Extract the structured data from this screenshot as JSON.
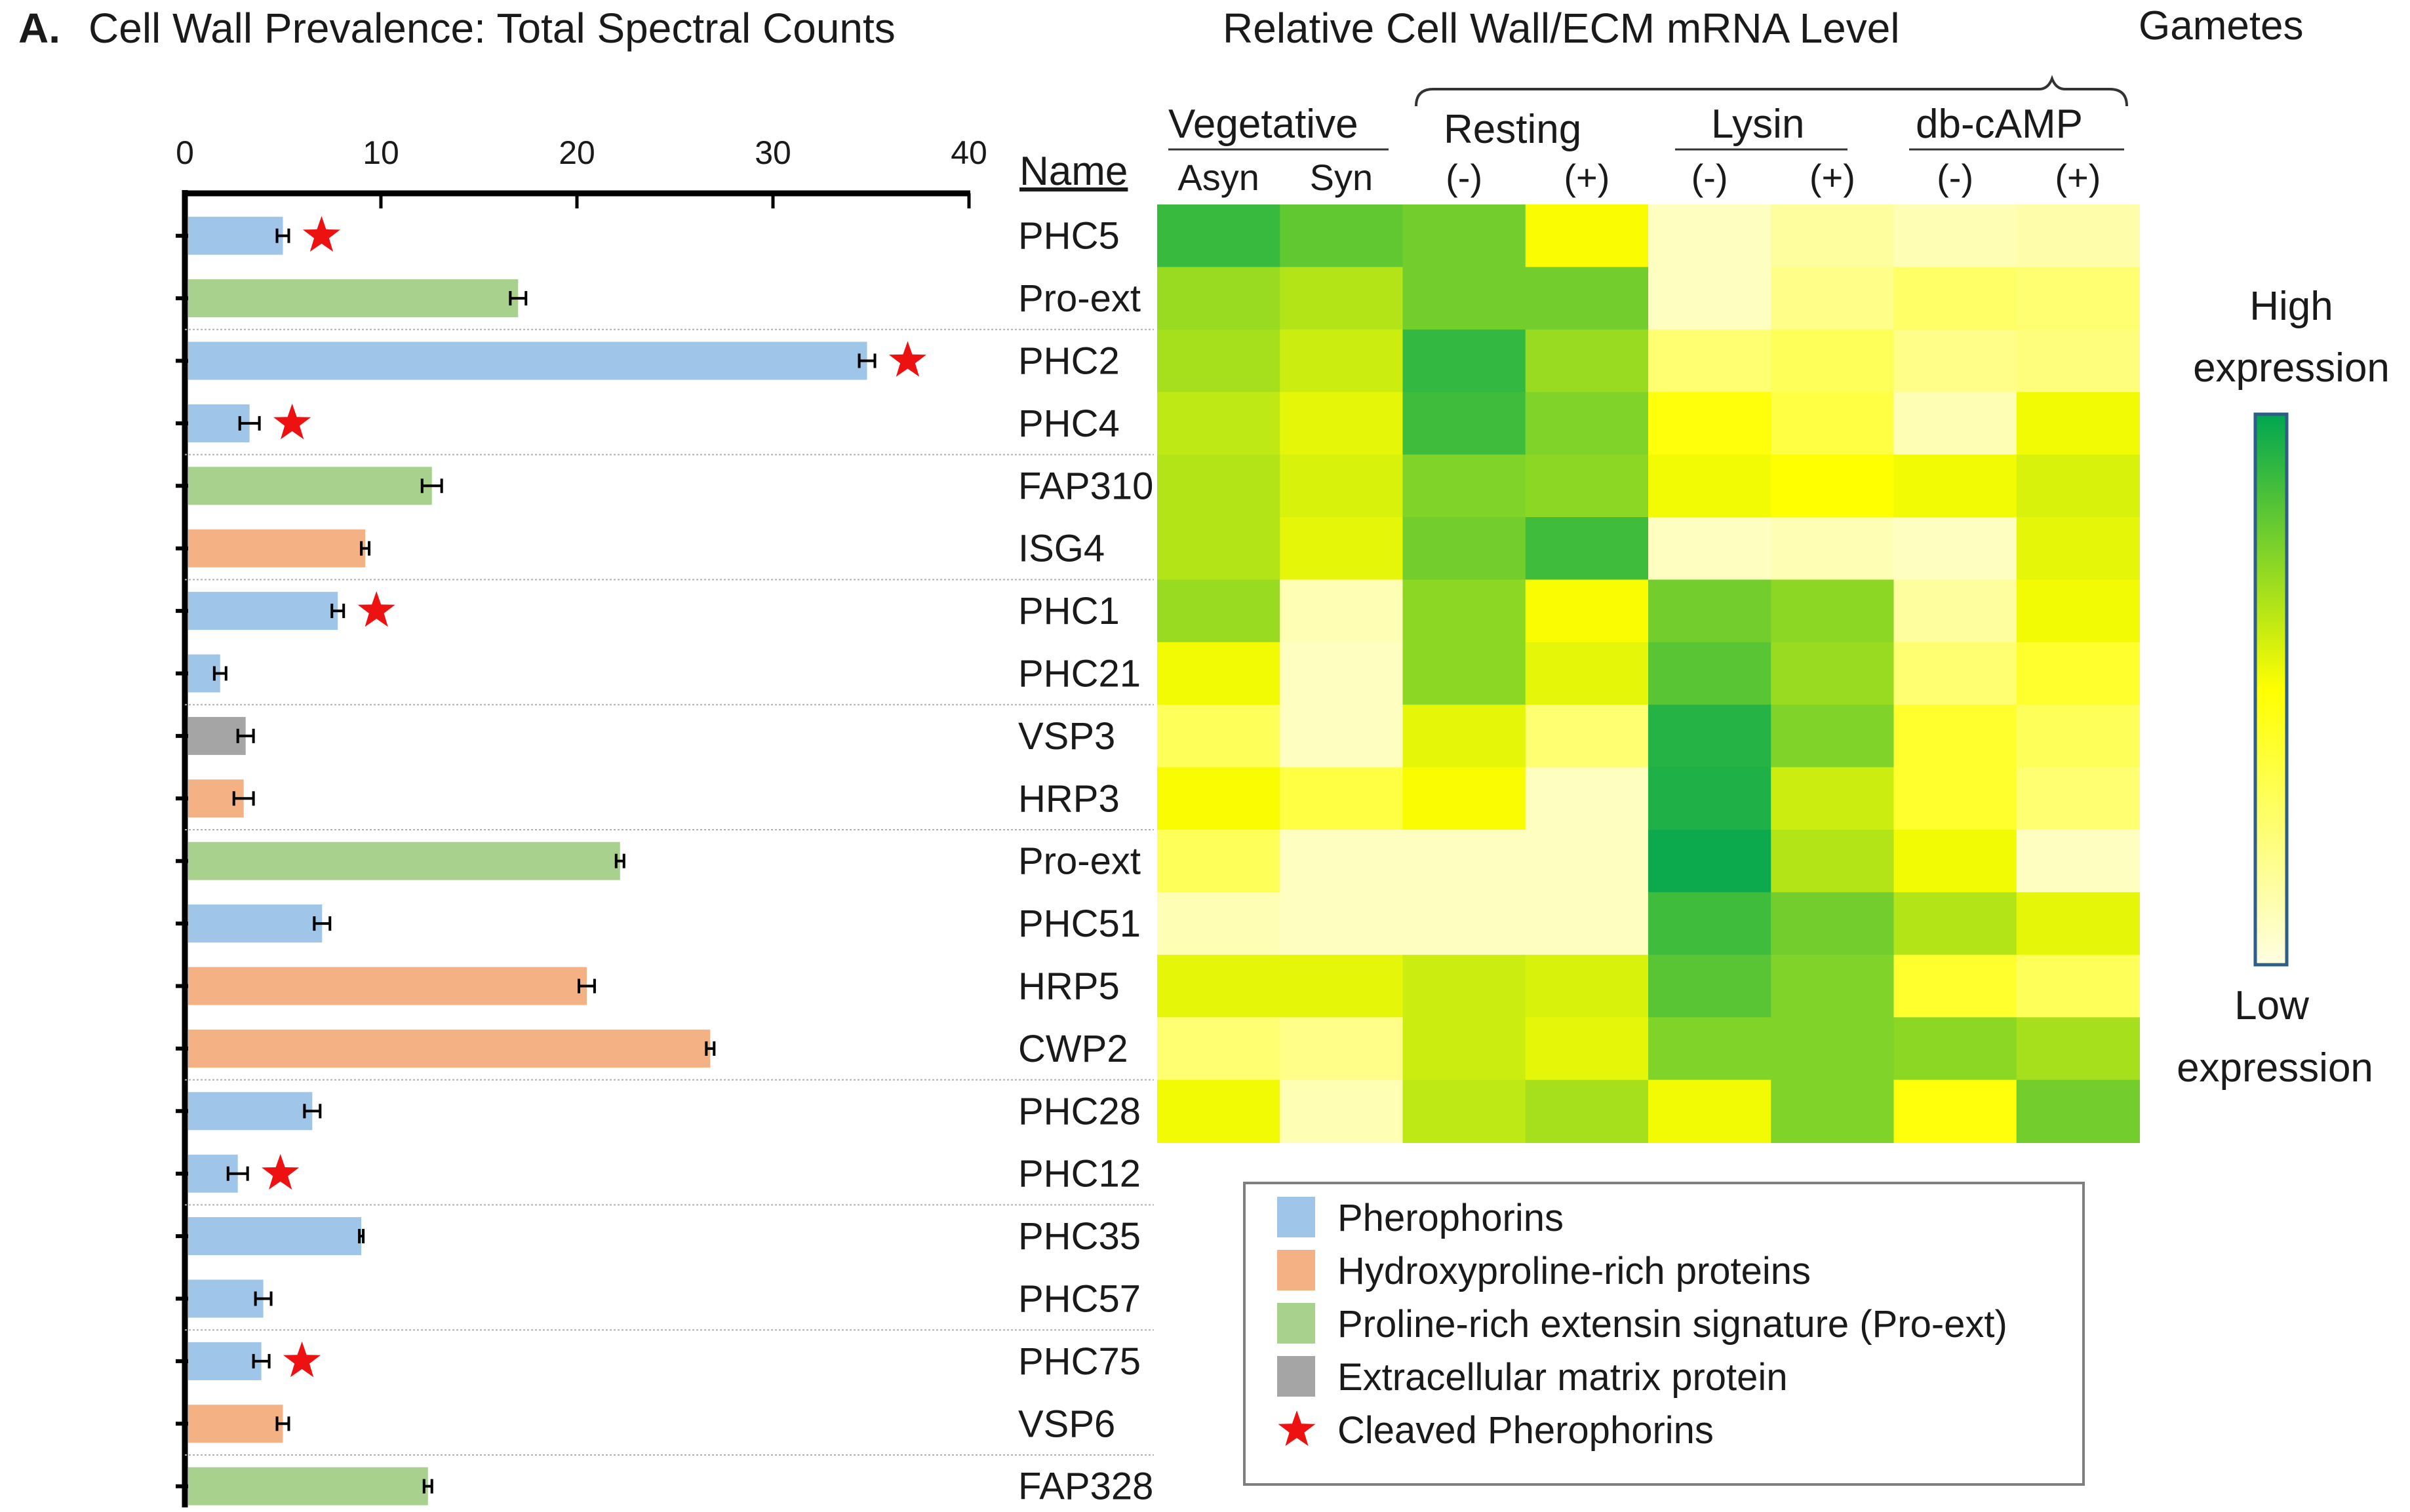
{
  "panel_letter": "A.",
  "bar_title": "Cell Wall Prevalence: Total Spectral Counts",
  "heat_title": "Relative Cell Wall/ECM mRNA Level",
  "name_header": "Name",
  "colors": {
    "Pherophorins": "#9fc5e8",
    "Hydroxyproline-rich proteins": "#f4b183",
    "Proline-rich extensin signature (Pro-ext)": "#a9d18e",
    "Extracellular matrix protein": "#a5a5a5",
    "star": "#ee1111",
    "heat_low": "#fefee2",
    "heat_mid": "#ffff00",
    "heat_high": "#00a651"
  },
  "group_headers": {
    "gametes": "Gametes",
    "vegetative": "Vegetative",
    "resting": "Resting",
    "lysin": "Lysin",
    "dbcamp": "db-cAMP"
  },
  "column_labels": [
    "Asyn",
    "Syn",
    "(-)",
    "(+)",
    "(-)",
    "(+)",
    "(-)",
    "(+)"
  ],
  "colorbar": {
    "high_line1": "High",
    "high_line2": "expression",
    "low_line1": "Low",
    "low_line2": "expression"
  },
  "legend": [
    {
      "label": "Pherophorins",
      "kind": "swatch",
      "key": "Pherophorins"
    },
    {
      "label": "Hydroxyproline-rich proteins",
      "kind": "swatch",
      "key": "Hydroxyproline-rich proteins"
    },
    {
      "label": "Proline-rich extensin signature (Pro-ext)",
      "kind": "swatch",
      "key": "Proline-rich extensin signature (Pro-ext)"
    },
    {
      "label": "Extracellular matrix protein",
      "kind": "swatch",
      "key": "Extracellular matrix protein"
    },
    {
      "label": "Cleaved Pherophorins",
      "kind": "star",
      "key": "star"
    }
  ],
  "chart_data": [
    {
      "type": "bar",
      "orientation": "horizontal",
      "title": "Cell Wall Prevalence: Total Spectral Counts",
      "xlim": [
        0,
        40
      ],
      "xticks": [
        0,
        10,
        20,
        30,
        40
      ],
      "categories": [
        "PHC5",
        "Pro-ext",
        "PHC2",
        "PHC4",
        "FAP310",
        "ISG4",
        "PHC1",
        "PHC21",
        "VSP3",
        "HRP3",
        "Pro-ext",
        "PHC51",
        "HRP5",
        "CWP2",
        "PHC28",
        "PHC12",
        "PHC35",
        "PHC57",
        "PHC75",
        "VSP6",
        "FAP328"
      ],
      "values": [
        5,
        17,
        34.8,
        3.3,
        12.6,
        9.2,
        7.8,
        1.8,
        3.1,
        3.0,
        22.2,
        7.0,
        20.5,
        26.8,
        6.5,
        2.7,
        9.0,
        4.0,
        3.9,
        5.0,
        12.4
      ],
      "errors": [
        0.3,
        0.4,
        0.4,
        0.5,
        0.5,
        0.2,
        0.3,
        0.3,
        0.4,
        0.5,
        0.2,
        0.4,
        0.4,
        0.2,
        0.4,
        0.5,
        0.1,
        0.4,
        0.4,
        0.3,
        0.2
      ],
      "classes": [
        "Pherophorins",
        "Proline-rich extensin signature (Pro-ext)",
        "Pherophorins",
        "Pherophorins",
        "Proline-rich extensin signature (Pro-ext)",
        "Hydroxyproline-rich proteins",
        "Pherophorins",
        "Pherophorins",
        "Extracellular matrix protein",
        "Hydroxyproline-rich proteins",
        "Proline-rich extensin signature (Pro-ext)",
        "Pherophorins",
        "Hydroxyproline-rich proteins",
        "Hydroxyproline-rich proteins",
        "Pherophorins",
        "Pherophorins",
        "Pherophorins",
        "Pherophorins",
        "Pherophorins",
        "Hydroxyproline-rich proteins",
        "Proline-rich extensin signature (Pro-ext)"
      ],
      "cleaved": [
        true,
        false,
        true,
        true,
        false,
        false,
        true,
        false,
        false,
        false,
        false,
        false,
        false,
        false,
        false,
        true,
        false,
        false,
        true,
        false,
        false
      ]
    },
    {
      "type": "heatmap",
      "title": "Relative Cell Wall/ECM mRNA Level",
      "columns": [
        "Vegetative Asyn",
        "Vegetative Syn",
        "Resting (-)",
        "Resting (+)",
        "Lysin (-)",
        "Lysin (+)",
        "db-cAMP (-)",
        "db-cAMP (+)"
      ],
      "rows": [
        "PHC5",
        "Pro-ext",
        "PHC2",
        "PHC4",
        "FAP310",
        "ISG4",
        "PHC1",
        "PHC21",
        "VSP3",
        "HRP3",
        "Pro-ext",
        "PHC51",
        "HRP5",
        "CWP2",
        "PHC28"
      ],
      "scale": "0 = low expression, 1 = high expression",
      "values": [
        [
          0.78,
          0.62,
          0.55,
          0.02,
          -0.85,
          -0.7,
          -0.8,
          -0.75
        ],
        [
          0.4,
          0.3,
          0.55,
          0.55,
          -0.85,
          -0.6,
          -0.45,
          -0.5
        ],
        [
          0.35,
          0.2,
          0.8,
          0.4,
          -0.5,
          -0.4,
          -0.6,
          -0.55
        ],
        [
          0.25,
          0.1,
          0.75,
          0.5,
          -0.05,
          -0.3,
          -0.8,
          0.05
        ],
        [
          0.3,
          0.15,
          0.5,
          0.45,
          0.05,
          0.0,
          0.05,
          0.15
        ],
        [
          0.3,
          0.1,
          0.55,
          0.75,
          -0.85,
          -0.8,
          -0.85,
          0.1
        ],
        [
          0.4,
          -0.8,
          0.45,
          0.02,
          0.55,
          0.45,
          -0.7,
          0.05
        ],
        [
          0.05,
          -0.85,
          0.45,
          0.1,
          0.65,
          0.4,
          -0.5,
          -0.2
        ],
        [
          -0.4,
          -0.85,
          0.1,
          -0.5,
          0.85,
          0.5,
          -0.2,
          -0.4
        ],
        [
          0.02,
          -0.3,
          0.02,
          -0.85,
          0.88,
          0.2,
          -0.2,
          -0.5
        ],
        [
          -0.4,
          -0.85,
          -0.85,
          -0.85,
          0.95,
          0.3,
          0.05,
          -0.85
        ],
        [
          -0.8,
          -0.85,
          -0.85,
          -0.85,
          0.75,
          0.55,
          0.3,
          0.1
        ],
        [
          0.1,
          0.1,
          0.2,
          0.15,
          0.65,
          0.5,
          -0.2,
          -0.4
        ],
        [
          -0.5,
          -0.6,
          0.2,
          0.1,
          0.5,
          0.5,
          0.45,
          0.35
        ],
        [
          0.05,
          -0.8,
          0.25,
          0.35,
          0.05,
          0.5,
          -0.05,
          0.55
        ]
      ]
    }
  ]
}
